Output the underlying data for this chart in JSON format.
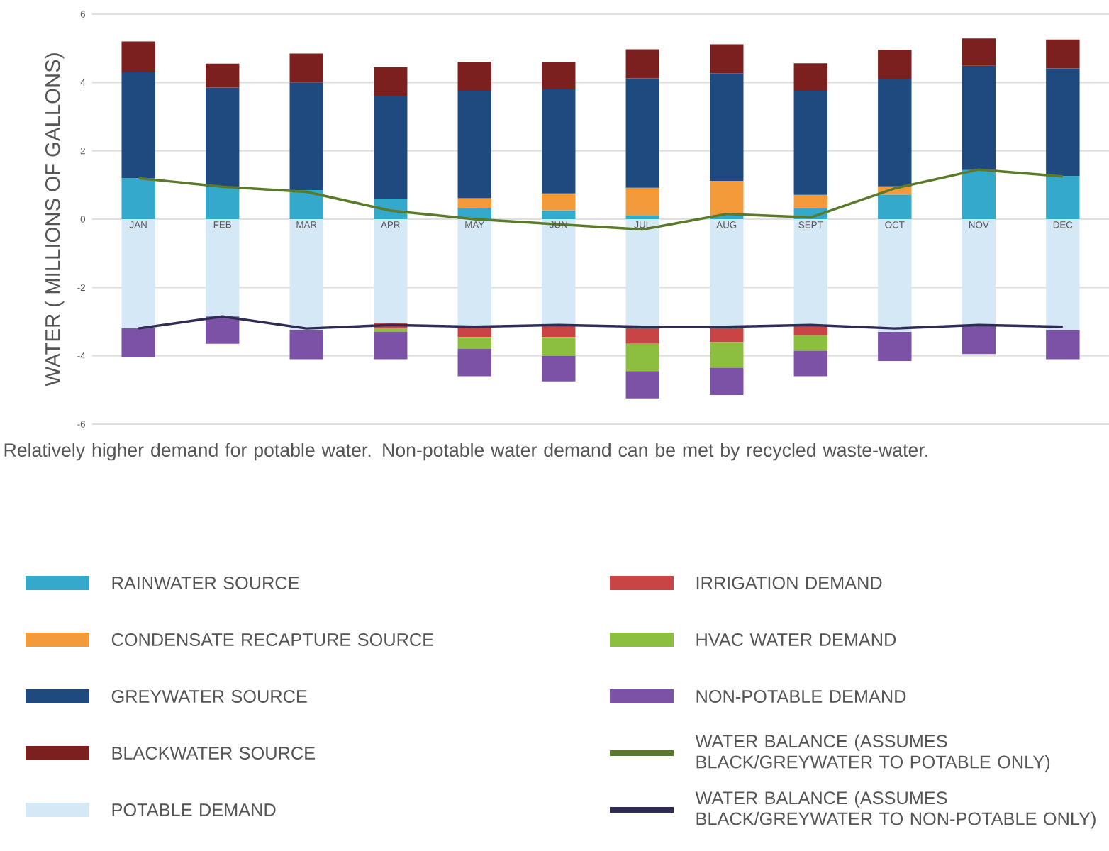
{
  "chart_data": {
    "type": "bar",
    "stacked": true,
    "ylabel": "WATER ( MILLIONS OF GALLONS)",
    "categories": [
      "JAN",
      "FEB",
      "MAR",
      "APR",
      "MAY",
      "JUN",
      "JUL",
      "AUG",
      "SEPT",
      "OCT",
      "NOV",
      "DEC"
    ],
    "ylim": [
      -6,
      6
    ],
    "yticks": [
      -6,
      -4,
      -2,
      0,
      2,
      4,
      6
    ],
    "grid": "y",
    "legend": "bottom",
    "annotations": [
      "Relatively higher demand for potable water.  Non-potable water demand can be met by recycled waste-water."
    ],
    "series": [
      {
        "name": "RAINWATER SOURCE",
        "color": "#35a9cc",
        "values": [
          1.2,
          0.95,
          0.85,
          0.6,
          0.33,
          0.26,
          0.12,
          0.12,
          0.33,
          0.72,
          1.44,
          1.26
        ]
      },
      {
        "name": "CONDENSATE RECAPTURE SOURCE",
        "color": "#f39a3a",
        "values": [
          null,
          null,
          null,
          null,
          0.28,
          0.49,
          0.8,
          1.0,
          0.38,
          0.24,
          null,
          null
        ]
      },
      {
        "name": "GREYWATER SOURCE",
        "color": "#1f4a80",
        "values": [
          3.1,
          2.9,
          3.15,
          3.0,
          3.15,
          3.05,
          3.2,
          3.15,
          3.05,
          3.15,
          3.05,
          3.15
        ]
      },
      {
        "name": "BLACKWATER SOURCE",
        "color": "#7b1f1f",
        "values": [
          0.9,
          0.7,
          0.85,
          0.85,
          0.85,
          0.8,
          0.85,
          0.85,
          0.8,
          0.85,
          0.8,
          0.85
        ]
      },
      {
        "name": "POTABLE DEMAND",
        "color": "#d5e8f5",
        "values": [
          -3.2,
          -2.85,
          -3.25,
          -3.05,
          -3.15,
          -3.1,
          -3.2,
          -3.2,
          -3.1,
          -3.3,
          -3.1,
          -3.25
        ]
      },
      {
        "name": "IRRIGATION DEMAND",
        "color": "#c94545",
        "values": [
          null,
          null,
          null,
          -0.15,
          -0.3,
          -0.35,
          -0.45,
          -0.4,
          -0.3,
          null,
          null,
          null
        ]
      },
      {
        "name": "HVAC WATER DEMAND",
        "color": "#8cbf3f",
        "values": [
          null,
          null,
          null,
          -0.1,
          -0.35,
          -0.55,
          -0.8,
          -0.75,
          -0.45,
          null,
          null,
          null
        ]
      },
      {
        "name": "NON-POTABLE DEMAND",
        "color": "#7b52a6",
        "values": [
          -0.85,
          -0.8,
          -0.85,
          -0.8,
          -0.8,
          -0.75,
          -0.8,
          -0.8,
          -0.75,
          -0.85,
          -0.85,
          -0.85
        ]
      },
      {
        "name": "WATER BALANCE (ASSUMES BLACK/GREYWATER TO POTABLE ONLY)",
        "type": "line",
        "color": "#5a7a2a",
        "values": [
          1.2,
          0.95,
          0.8,
          0.25,
          0,
          -0.15,
          -0.3,
          0.15,
          0.05,
          0.9,
          1.45,
          1.25
        ]
      },
      {
        "name": "WATER BALANCE (ASSUMES BLACK/GREYWATER TO NON-POTABLE ONLY)",
        "type": "line",
        "color": "#2e2b55",
        "values": [
          -3.2,
          -2.85,
          -3.2,
          -3.1,
          -3.15,
          -3.1,
          -3.15,
          -3.15,
          -3.1,
          -3.2,
          -3.1,
          -3.15
        ]
      }
    ]
  }
}
